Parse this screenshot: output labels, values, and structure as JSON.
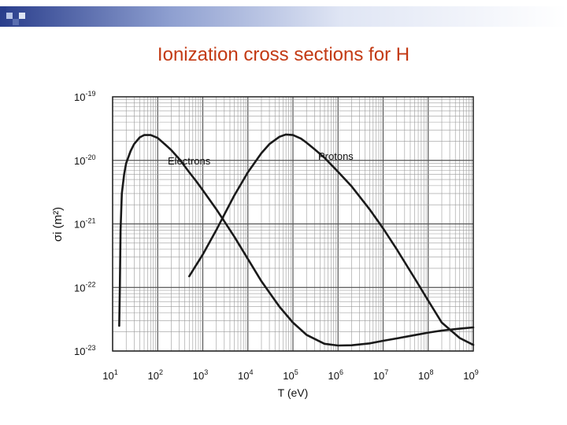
{
  "slide": {
    "title": "Ionization cross sections for H",
    "accent_dark": "#2a3e8c",
    "accent_light": "#b8c4e6",
    "title_color": "#c33a14"
  },
  "chart_data": {
    "type": "line",
    "xlabel": "T (eV)",
    "ylabel": "σi (m²)",
    "x_scale": "log",
    "y_scale": "log",
    "xlim": [
      10,
      1000000000
    ],
    "ylim": [
      1e-23,
      1e-19
    ],
    "grid": true,
    "x_ticks": [
      {
        "value": 10,
        "base": "10",
        "exp": "1"
      },
      {
        "value": 100,
        "base": "10",
        "exp": "2"
      },
      {
        "value": 1000,
        "base": "10",
        "exp": "3"
      },
      {
        "value": 10000,
        "base": "10",
        "exp": "4"
      },
      {
        "value": 100000,
        "base": "10",
        "exp": "5"
      },
      {
        "value": 1000000,
        "base": "10",
        "exp": "6"
      },
      {
        "value": 10000000,
        "base": "10",
        "exp": "7"
      },
      {
        "value": 100000000,
        "base": "10",
        "exp": "8"
      },
      {
        "value": 1000000000,
        "base": "10",
        "exp": "9"
      }
    ],
    "y_ticks": [
      {
        "value": 1e-19,
        "base": "10",
        "exp": "-19"
      },
      {
        "value": 1e-20,
        "base": "10",
        "exp": "-20"
      },
      {
        "value": 1e-21,
        "base": "10",
        "exp": "-21"
      },
      {
        "value": 1e-22,
        "base": "10",
        "exp": "-22"
      },
      {
        "value": 1e-23,
        "base": "10",
        "exp": "-23"
      }
    ],
    "series": [
      {
        "name": "Electrons",
        "x": [
          14,
          14.5,
          15,
          16,
          18,
          20,
          25,
          30,
          40,
          50,
          70,
          100,
          150,
          200,
          300,
          500,
          700,
          1000,
          2000,
          3000,
          5000,
          10000,
          20000,
          50000,
          100000,
          200000,
          500000,
          1000000,
          2000000,
          5000000,
          10000000,
          20000000,
          50000000,
          100000000,
          200000000,
          500000000,
          1000000000
        ],
        "y": [
          2.5e-23,
          1e-22,
          8e-22,
          3e-21,
          6e-21,
          9e-21,
          1.4e-20,
          1.8e-20,
          2.3e-20,
          2.5e-20,
          2.5e-20,
          2.25e-20,
          1.75e-20,
          1.45e-20,
          1.05e-20,
          6.5e-21,
          4.8e-21,
          3.4e-21,
          1.7e-21,
          1.1e-21,
          6.3e-22,
          2.8e-22,
          1.25e-22,
          5e-23,
          2.8e-23,
          1.8e-23,
          1.3e-23,
          1.22e-23,
          1.23e-23,
          1.32e-23,
          1.45e-23,
          1.58e-23,
          1.78e-23,
          1.95e-23,
          2.1e-23,
          2.25e-23,
          2.35e-23
        ]
      },
      {
        "name": "Protons",
        "x": [
          500,
          700,
          1000,
          2000,
          3000,
          5000,
          10000,
          20000,
          30000,
          50000,
          70000,
          100000,
          150000,
          200000,
          300000,
          500000,
          1000000,
          2000000,
          5000000,
          10000000,
          20000000,
          50000000,
          100000000,
          200000000,
          500000000,
          1000000000
        ],
        "y": [
          1.5e-22,
          2.2e-22,
          3.3e-22,
          8e-22,
          1.4e-21,
          2.8e-21,
          6.5e-21,
          1.3e-20,
          1.8e-20,
          2.35e-20,
          2.55e-20,
          2.5e-20,
          2.2e-20,
          1.9e-20,
          1.5e-20,
          1.1e-20,
          6.6e-21,
          3.9e-21,
          1.7e-21,
          8.5e-22,
          4e-22,
          1.4e-22,
          6.2e-23,
          2.8e-23,
          1.6e-23,
          1.25e-23
        ]
      }
    ]
  }
}
